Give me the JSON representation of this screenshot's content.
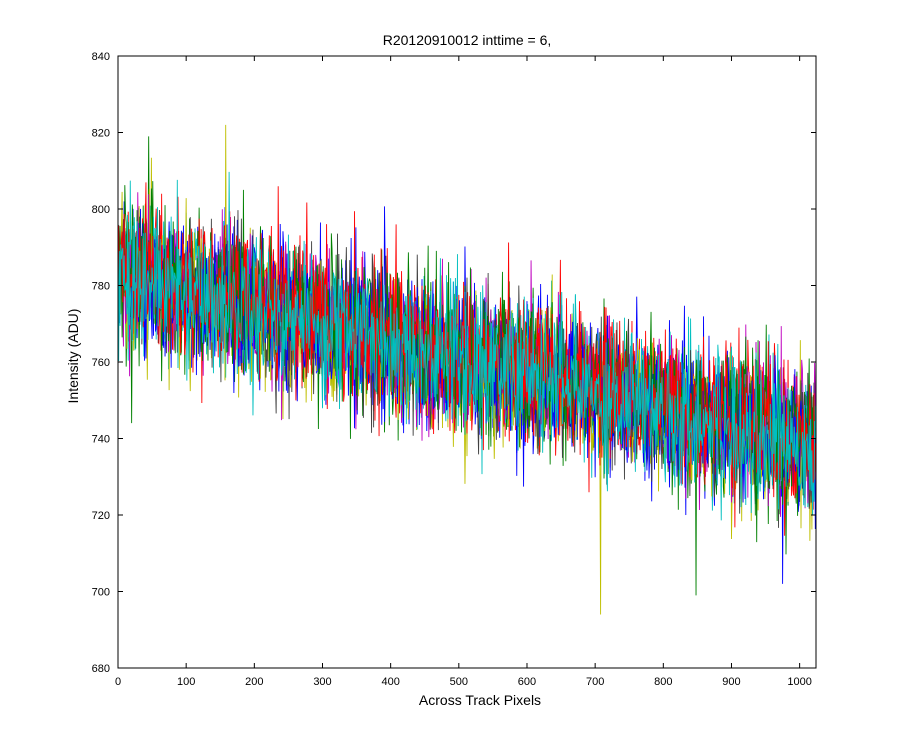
{
  "figure": {
    "background": "#ffffff"
  },
  "chart_data": {
    "type": "line",
    "title": "R20120910012 inttime = 6,",
    "xlabel": "Across Track Pixels",
    "ylabel": "Intensity (ADU)",
    "xlim": [
      0,
      1024
    ],
    "ylim": [
      680,
      840
    ],
    "xticks": [
      0,
      100,
      200,
      300,
      400,
      500,
      600,
      700,
      800,
      900,
      1000
    ],
    "yticks": [
      680,
      700,
      720,
      740,
      760,
      780,
      800,
      820,
      840
    ],
    "grid": false,
    "legend": "none",
    "n_points": 1024,
    "trend": {
      "description": "noisy traces decreasing roughly linearly with pixel",
      "start_value": 783,
      "end_value": 738,
      "noise_amplitude": 12
    },
    "series": [
      {
        "color": "#0000ff"
      },
      {
        "color": "#008000"
      },
      {
        "color": "#ff0000"
      },
      {
        "color": "#00bfbf"
      },
      {
        "color": "#bfbf00"
      },
      {
        "color": "#bf00bf"
      },
      {
        "color": "#404040"
      },
      {
        "color": "#0000ff"
      },
      {
        "color": "#008000"
      },
      {
        "color": "#ff0000"
      },
      {
        "color": "#00bfbf"
      }
    ],
    "annotated_extremes": [
      {
        "x": 158,
        "y": 822
      },
      {
        "x": 45,
        "y": 819
      },
      {
        "x": 708,
        "y": 694
      },
      {
        "x": 848,
        "y": 699
      },
      {
        "x": 975,
        "y": 702
      }
    ]
  }
}
